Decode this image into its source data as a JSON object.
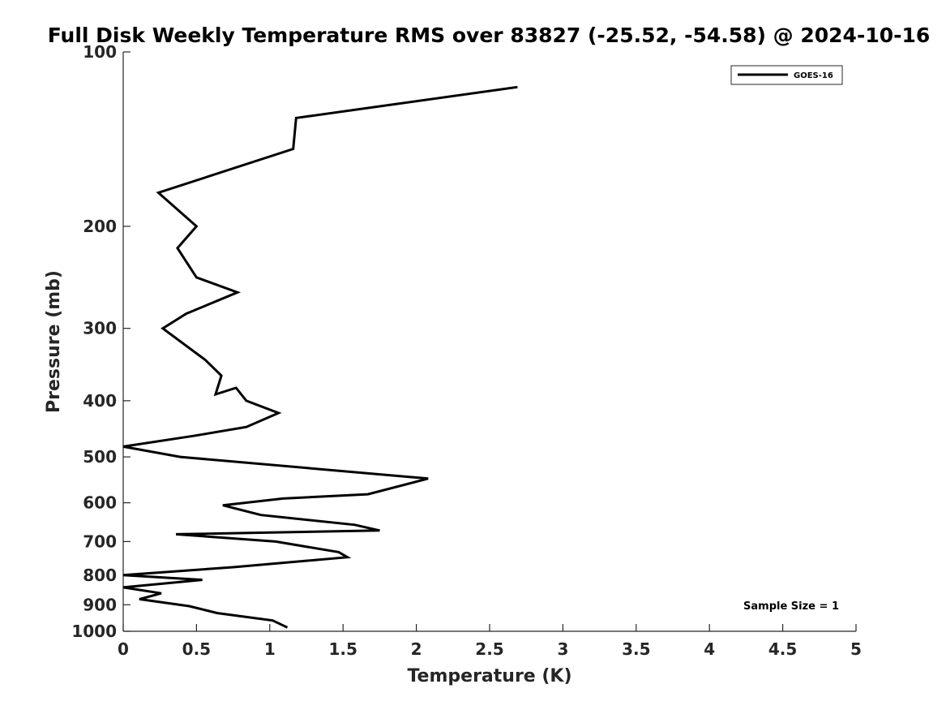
{
  "chart_data": {
    "type": "line",
    "title": "Full Disk Weekly Temperature RMS over 83827 (-25.52, -54.58) @ 2024-10-16",
    "xlabel": "Temperature (K)",
    "ylabel": "Pressure (mb)",
    "xlim": [
      0,
      5
    ],
    "ylim": [
      100,
      1000
    ],
    "y_scale": "log",
    "y_reversed": true,
    "xticks": [
      0,
      0.5,
      1,
      1.5,
      2,
      2.5,
      3,
      3.5,
      4,
      4.5,
      5
    ],
    "xtick_labels": [
      "0",
      "0.5",
      "1",
      "1.5",
      "2",
      "2.5",
      "3",
      "3.5",
      "4",
      "4.5",
      "5"
    ],
    "yticks": [
      100,
      200,
      300,
      400,
      500,
      600,
      700,
      800,
      900,
      1000
    ],
    "ytick_labels": [
      "100",
      "200",
      "300",
      "400",
      "500",
      "600",
      "700",
      "800",
      "900",
      "1000"
    ],
    "grid": false,
    "legend_position": "top-right",
    "series": [
      {
        "name": "GOES-16",
        "color": "#000000",
        "x": [
          2.69,
          1.18,
          1.16,
          0.24,
          0.5,
          0.37,
          0.5,
          0.78,
          0.43,
          0.27,
          0.56,
          0.67,
          0.63,
          0.77,
          0.84,
          1.06,
          0.84,
          0.48,
          0.0,
          0.39,
          2.08,
          1.67,
          1.09,
          0.68,
          0.94,
          1.58,
          1.75,
          0.36,
          1.04,
          1.47,
          1.53,
          0.75,
          0.0,
          0.54,
          0.0,
          0.26,
          0.11,
          0.45,
          0.64,
          1.02,
          1.12
        ],
        "y": [
          115,
          130,
          147,
          175,
          200,
          218,
          245,
          260,
          283,
          300,
          340,
          362,
          390,
          380,
          400,
          420,
          444,
          460,
          480,
          500,
          545,
          580,
          590,
          606,
          630,
          655,
          670,
          680,
          700,
          730,
          745,
          775,
          800,
          815,
          840,
          860,
          880,
          905,
          930,
          958,
          985
        ]
      }
    ],
    "annotations": [
      "Sample Size = 1"
    ]
  }
}
